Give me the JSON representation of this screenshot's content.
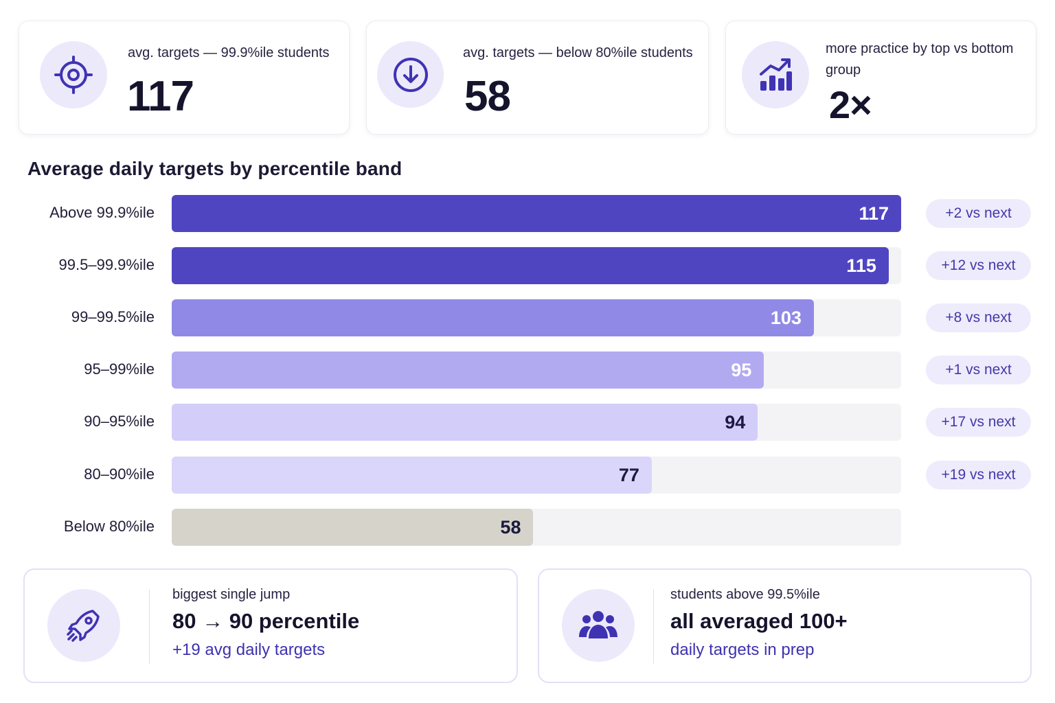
{
  "stats": [
    {
      "label": "avg. targets — 99.9%ile students",
      "value": "117",
      "icon": "target-icon"
    },
    {
      "label": "avg. targets — below 80%ile students",
      "value": "58",
      "icon": "arrow-down-circle-icon"
    },
    {
      "label": "more practice by top vs bottom group",
      "value": "2×",
      "icon": "trending-up-chart-icon"
    }
  ],
  "chart_title": "Average daily targets by percentile band",
  "chart_data": {
    "type": "bar",
    "orientation": "horizontal",
    "title": "Average daily targets by percentile band",
    "categories": [
      "Above 99.9%ile",
      "99.5–99.9%ile",
      "99–99.5%ile",
      "95–99%ile",
      "90–95%ile",
      "80–90%ile",
      "Below 80%ile"
    ],
    "values": [
      117,
      115,
      103,
      95,
      94,
      77,
      58
    ],
    "value_labels": [
      "117",
      "115",
      "103",
      "95",
      "94",
      "77",
      "58"
    ],
    "deltas": [
      "+2 vs next",
      "+12 vs next",
      "+8 vs next",
      "+1 vs next",
      "+17 vs next",
      "+19 vs next",
      ""
    ],
    "xlim": [
      0,
      117
    ],
    "grid": false,
    "colors": [
      "#5045c1",
      "#5045c1",
      "#9189e6",
      "#b1aaf1",
      "#d3cdfa",
      "#dad5fb",
      "#d6d3ca"
    ],
    "label_colors": [
      "#ffffff",
      "#ffffff",
      "#ffffff",
      "#ffffff",
      "#1c1a40",
      "#1c1a40",
      "#1c1a40"
    ]
  },
  "info_cards": [
    {
      "icon": "rocket-icon",
      "kicker": "biggest single jump",
      "headline": "80 → 90 percentile",
      "sub": "+19 avg daily targets"
    },
    {
      "icon": "users-group-icon",
      "kicker": "students above 99.5%ile",
      "headline": "all averaged 100+",
      "sub": "daily targets in prep"
    }
  ],
  "colors": {
    "accent": "#4338a8",
    "accent_soft": "#ece9fb",
    "track": "#f3f3f5"
  }
}
